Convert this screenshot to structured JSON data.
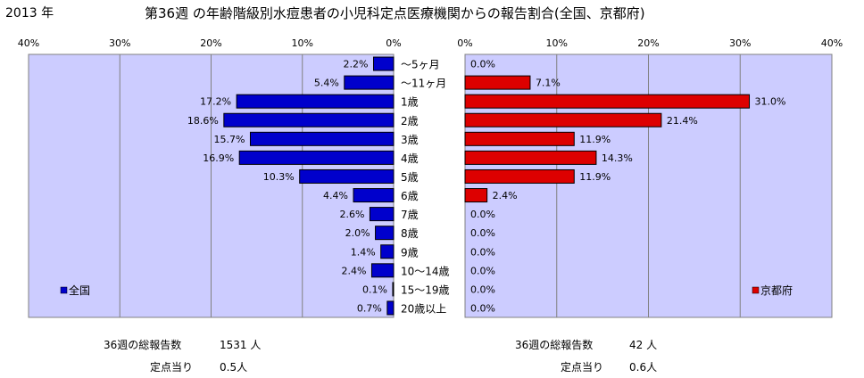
{
  "header": {
    "year": "2013 年",
    "title": "第36週 の年齢階級別水痘患者の小児科定点医療機関からの報告割合(全国、京都府)"
  },
  "chart_data": {
    "type": "bar",
    "orientation": "horizontal",
    "categories": [
      "～5ヶ月",
      "～11ヶ月",
      "1歳",
      "2歳",
      "3歳",
      "4歳",
      "5歳",
      "6歳",
      "7歳",
      "8歳",
      "9歳",
      "10～14歳",
      "15～19歳",
      "20歳以上"
    ],
    "xlim": [
      0,
      40
    ],
    "ticks": [
      "40%",
      "30%",
      "20%",
      "10%",
      "0%"
    ],
    "ticks_right": [
      "0%",
      "10%",
      "20%",
      "30%",
      "40%"
    ],
    "series": [
      {
        "name": "全国",
        "color": "#0000cc",
        "values": [
          2.2,
          5.4,
          17.2,
          18.6,
          15.7,
          16.9,
          10.3,
          4.4,
          2.6,
          2.0,
          1.4,
          2.4,
          0.1,
          0.7
        ],
        "labels": [
          "2.2%",
          "5.4%",
          "17.2%",
          "18.6%",
          "15.7%",
          "16.9%",
          "10.3%",
          "4.4%",
          "2.6%",
          "2.0%",
          "1.4%",
          "2.4%",
          "0.1%",
          "0.7%"
        ]
      },
      {
        "name": "京都府",
        "color": "#dd0000",
        "values": [
          0.0,
          7.1,
          31.0,
          21.4,
          11.9,
          14.3,
          11.9,
          2.4,
          0.0,
          0.0,
          0.0,
          0.0,
          0.0,
          0.0
        ],
        "labels": [
          "0.0%",
          "7.1%",
          "31.0%",
          "21.4%",
          "11.9%",
          "14.3%",
          "11.9%",
          "2.4%",
          "0.0%",
          "0.0%",
          "0.0%",
          "0.0%",
          "0.0%",
          "0.0%"
        ]
      }
    ],
    "grid": true,
    "plot_background": "#ccccff"
  },
  "footer": {
    "national": {
      "total_label": "36週の総報告数",
      "total_value": "1531 人",
      "per_label": "定点当り",
      "per_value": "0.5人"
    },
    "kyoto": {
      "total_label": "36週の総報告数",
      "total_value": "42 人",
      "per_label": "定点当り",
      "per_value": "0.6人"
    }
  }
}
